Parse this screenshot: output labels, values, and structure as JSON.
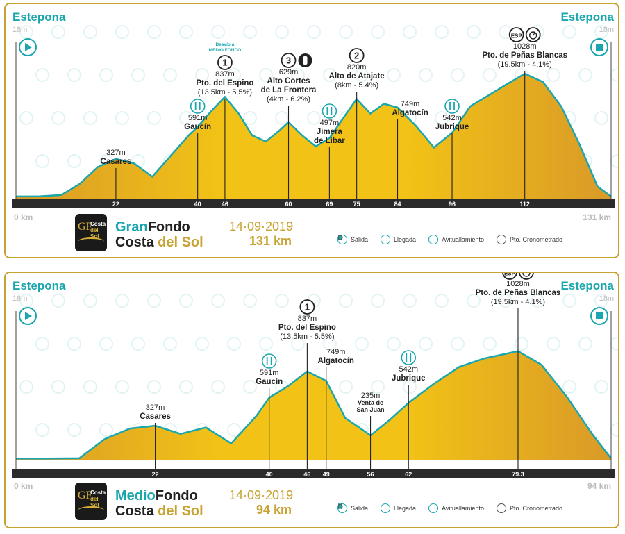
{
  "colors": {
    "accent": "#1aa6ad",
    "gold": "#c8a232",
    "fill_light": "#f2c316",
    "fill_dark": "#d99a28",
    "axis": "#2b2b2b"
  },
  "legend": {
    "start": "Salida",
    "finish": "Llegada",
    "food": "Avituallamiento",
    "timed": "Pto. Cronometrado"
  },
  "panels": [
    {
      "start_town": "Estepona",
      "start_alt": "18m",
      "end_town": "Estepona",
      "end_alt": "18m",
      "km_start": "0 km",
      "km_end": "131 km",
      "brand1_a": "Gran",
      "brand1_b": "Fondo",
      "brand2_a": "Costa ",
      "brand2_b": "del Sol",
      "logo_gf": "GF",
      "logo_cs1": "Costa",
      "logo_cs2": "del Sol",
      "date": "14·09·2019",
      "distance": "131 km",
      "detour_label": "Desvío a MEDIO FONDO",
      "peaks": [
        {
          "alt": "327m",
          "name": "Casares",
          "sub": "",
          "badge": "",
          "food": false,
          "timed": false
        },
        {
          "alt": "591m",
          "name": "Gaucín",
          "sub": "",
          "badge": "",
          "food": true,
          "timed": false
        },
        {
          "alt": "837m",
          "name": "Pto. del Espino",
          "sub": "(13.5km - 5.5%)",
          "badge": "1",
          "food": false,
          "timed": false
        },
        {
          "alt": "629m",
          "name": "Alto Cortes de La Frontera",
          "sub": "(4km - 6.2%)",
          "badge": "3",
          "food": false,
          "timed": false
        },
        {
          "alt": "497m",
          "name": "Jimera de Líbar",
          "sub": "",
          "badge": "",
          "food": true,
          "timed": false
        },
        {
          "alt": "820m",
          "name": "Alto de Atajate",
          "sub": "(8km - 5.4%)",
          "badge": "2",
          "food": false,
          "timed": false
        },
        {
          "alt": "749m",
          "name": "Algatocín",
          "sub": "",
          "badge": "",
          "food": false,
          "timed": false
        },
        {
          "alt": "542m",
          "name": "Jubrique",
          "sub": "",
          "badge": "",
          "food": true,
          "timed": false
        },
        {
          "alt": "1028m",
          "name": "Pto. de Peñas Blancas",
          "sub": "(19.5km - 4.1%)",
          "badge": "ESP",
          "food": false,
          "timed": true
        }
      ],
      "tick_labels": [
        "22",
        "40",
        "46",
        "60",
        "69",
        "75",
        "84",
        "96",
        "112"
      ]
    },
    {
      "start_town": "Estepona",
      "start_alt": "18m",
      "end_town": "Estepona",
      "end_alt": "18m",
      "km_start": "0 km",
      "km_end": "94 km",
      "brand1_a": "Medio",
      "brand1_b": "Fondo",
      "brand2_a": "Costa ",
      "brand2_b": "del Sol",
      "logo_gf": "GF",
      "logo_cs1": "Costa",
      "logo_cs2": "del Sol",
      "date": "14·09·2019",
      "distance": "94 km",
      "peaks": [
        {
          "alt": "327m",
          "name": "Casares",
          "sub": "",
          "badge": "",
          "food": false,
          "timed": false
        },
        {
          "alt": "591m",
          "name": "Gaucín",
          "sub": "",
          "badge": "",
          "food": true,
          "timed": false
        },
        {
          "alt": "837m",
          "name": "Pto. del Espino",
          "sub": "(13.5km - 5.5%)",
          "badge": "1",
          "food": false,
          "timed": false
        },
        {
          "alt": "749m",
          "name": "Algatocín",
          "sub": "",
          "badge": "",
          "food": false,
          "timed": false
        },
        {
          "alt": "235m",
          "name": "Venta de San Juan",
          "sub": "",
          "badge": "",
          "food": false,
          "timed": false
        },
        {
          "alt": "542m",
          "name": "Jubrique",
          "sub": "",
          "badge": "",
          "food": true,
          "timed": false
        },
        {
          "alt": "1028m",
          "name": "Pto. de Peñas Blancas",
          "sub": "(19.5km - 4.1%)",
          "badge": "ESP",
          "food": false,
          "timed": true
        }
      ],
      "tick_labels": [
        "22",
        "40",
        "46",
        "49",
        "56",
        "62",
        "79.3"
      ]
    }
  ],
  "chart_data": [
    {
      "type": "area",
      "title": "GranFondo Costa del Sol",
      "xlabel": "km",
      "ylabel": "m",
      "xlim": [
        0,
        131
      ],
      "x": [
        0,
        5,
        10,
        14,
        18,
        22,
        26,
        30,
        34,
        38,
        40,
        43,
        46,
        49,
        52,
        55,
        58,
        60,
        63,
        66,
        69,
        72,
        75,
        78,
        81,
        84,
        88,
        92,
        96,
        100,
        104,
        108,
        112,
        116,
        120,
        124,
        128,
        131
      ],
      "y": [
        18,
        18,
        30,
        120,
        260,
        327,
        290,
        180,
        350,
        520,
        591,
        720,
        837,
        700,
        520,
        470,
        560,
        629,
        520,
        430,
        497,
        660,
        820,
        700,
        780,
        749,
        600,
        420,
        542,
        760,
        850,
        940,
        1028,
        960,
        760,
        450,
        100,
        18
      ]
    },
    {
      "type": "area",
      "title": "MedioFondo Costa del Sol",
      "xlabel": "km",
      "ylabel": "m",
      "xlim": [
        0,
        94
      ],
      "x": [
        0,
        5,
        10,
        14,
        18,
        22,
        26,
        30,
        34,
        38,
        40,
        43,
        46,
        49,
        52,
        56,
        59,
        62,
        66,
        70,
        74,
        79.3,
        83,
        87,
        91,
        94
      ],
      "y": [
        18,
        18,
        20,
        200,
        300,
        327,
        250,
        310,
        160,
        420,
        591,
        700,
        837,
        749,
        400,
        235,
        380,
        542,
        720,
        880,
        960,
        1028,
        900,
        600,
        250,
        18
      ]
    }
  ]
}
